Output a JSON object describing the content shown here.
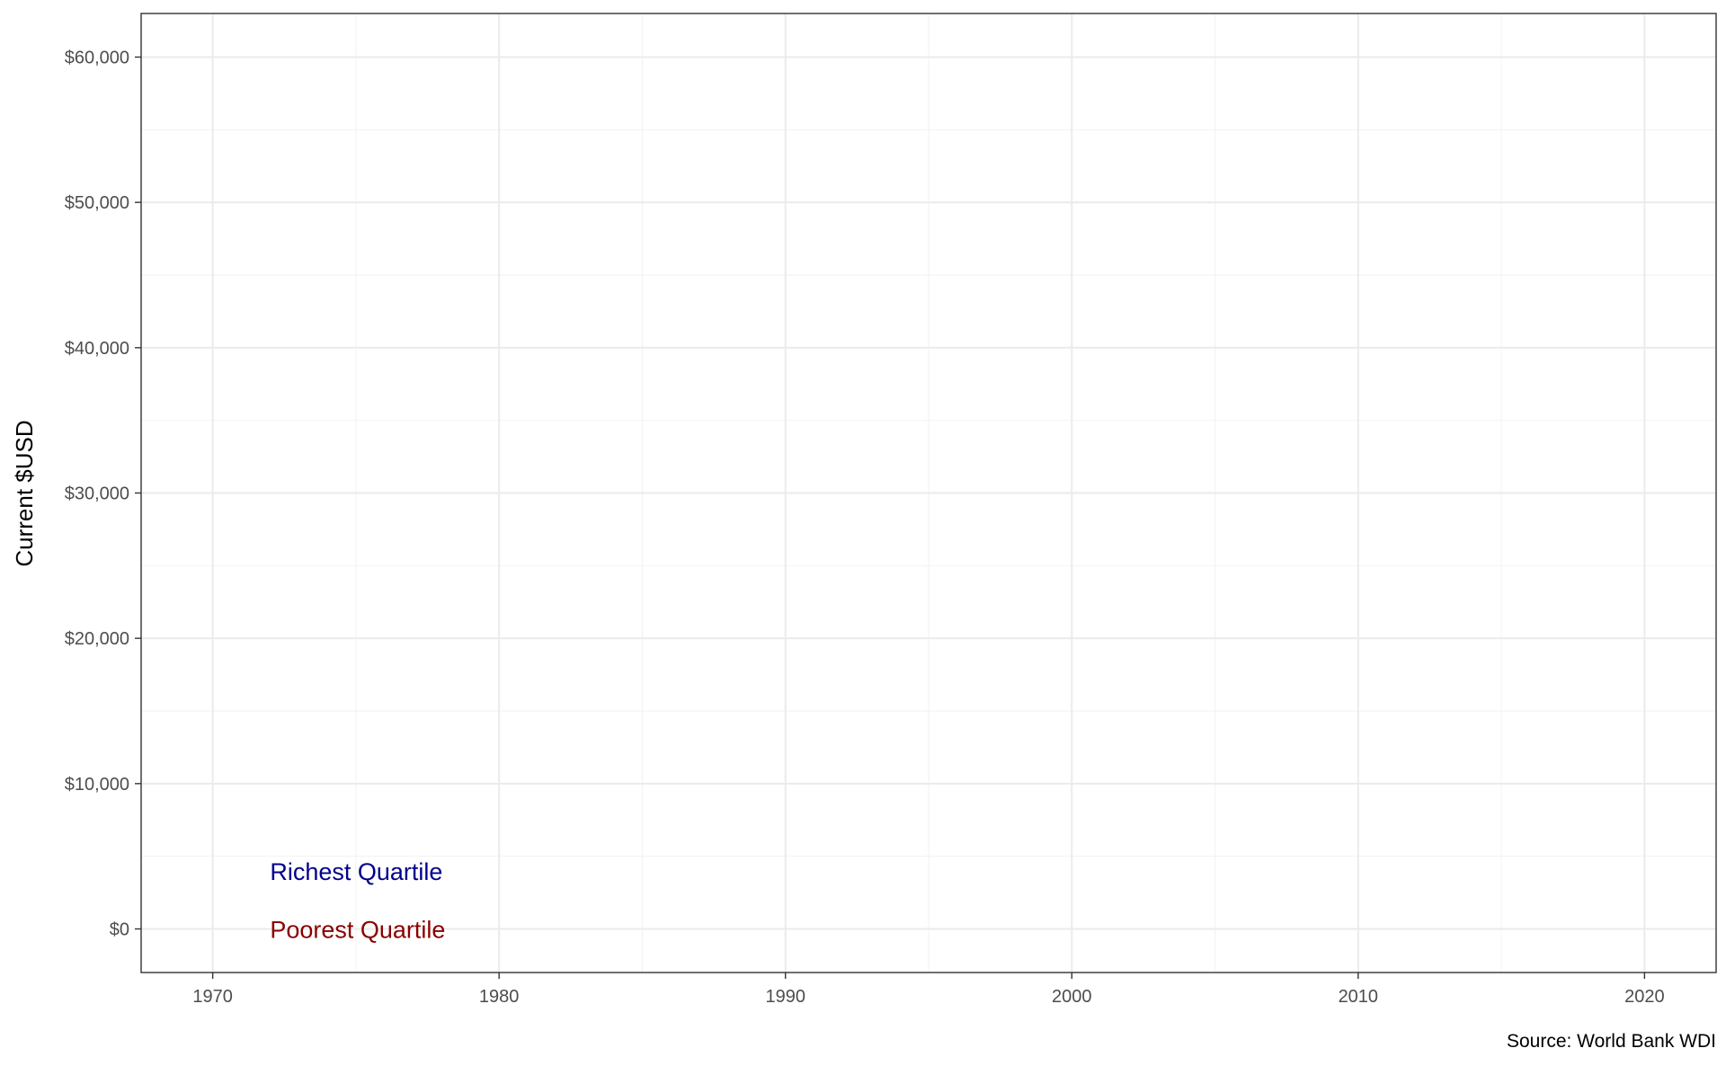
{
  "chart_data": {
    "type": "line",
    "title": "",
    "xlabel": "",
    "ylabel": "Current $USD",
    "caption": "Source: World Bank WDI",
    "xlim": [
      1967.5,
      2022.5
    ],
    "ylim": [
      -3000,
      63000
    ],
    "x_ticks": [
      1970,
      1980,
      1990,
      2000,
      2010,
      2020
    ],
    "x_tick_labels": [
      "1970",
      "1980",
      "1990",
      "2000",
      "2010",
      "2020"
    ],
    "y_ticks": [
      0,
      10000,
      20000,
      30000,
      40000,
      50000,
      60000
    ],
    "y_tick_labels": [
      "$0",
      "$10,000",
      "$20,000",
      "$30,000",
      "$40,000",
      "$50,000",
      "$60,000"
    ],
    "grid": true,
    "series": [
      {
        "name": "Richest Quartile",
        "color": "#00008B",
        "x": [],
        "y": []
      },
      {
        "name": "Poorest Quartile",
        "color": "#8B0000",
        "x": [],
        "y": []
      }
    ],
    "annotations": [
      {
        "text": "Richest Quartile",
        "x": 1972,
        "y": 4000,
        "color": "#00008B"
      },
      {
        "text": "Poorest Quartile",
        "x": 1972,
        "y": 0,
        "color": "#8B0000"
      }
    ]
  }
}
